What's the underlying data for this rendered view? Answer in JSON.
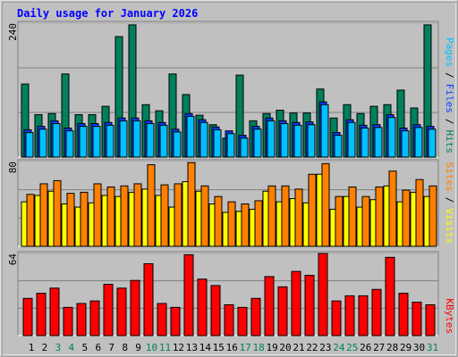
{
  "chart_data": {
    "type": "bar",
    "title": "Daily usage for January 2026",
    "categories": [
      "1",
      "2",
      "3",
      "4",
      "5",
      "6",
      "7",
      "8",
      "9",
      "10",
      "11",
      "12",
      "13",
      "14",
      "15",
      "16",
      "17",
      "18",
      "19",
      "20",
      "21",
      "22",
      "23",
      "24",
      "25",
      "26",
      "27",
      "28",
      "29",
      "30",
      "31"
    ],
    "category_colors": [
      "#000000",
      "#000000",
      "#00805c",
      "#00805c",
      "#000000",
      "#000000",
      "#000000",
      "#000000",
      "#000000",
      "#00805c",
      "#00805c",
      "#000000",
      "#000000",
      "#000000",
      "#000000",
      "#000000",
      "#00805c",
      "#00805c",
      "#000000",
      "#000000",
      "#000000",
      "#000000",
      "#000000",
      "#00805c",
      "#00805c",
      "#000000",
      "#000000",
      "#000000",
      "#000000",
      "#000000",
      "#00805c"
    ],
    "panels": [
      {
        "ylim": [
          0,
          240
        ],
        "yticks": [
          240
        ],
        "gridlines": [
          80,
          160
        ],
        "legend": [
          "Pages",
          "/",
          "Files",
          "/",
          "Hits"
        ],
        "legend_colors": [
          "#00c0ff",
          "#000000",
          "#0040ff",
          "#000000",
          "#00805c"
        ],
        "series": [
          {
            "name": "Hits",
            "color": "#00805c",
            "values": [
              131,
              76,
              78,
              149,
              76,
              76,
              91,
              216,
              237,
              94,
              83,
              149,
              112,
              75,
              58,
              34,
              147,
              65,
              78,
              84,
              79,
              79,
              122,
              70,
              94,
              78,
              91,
              94,
              120,
              88,
              237
            ]
          },
          {
            "name": "Files",
            "color": "#0040ff",
            "values": [
              49,
              55,
              65,
              52,
              60,
              60,
              62,
              70,
              70,
              65,
              62,
              50,
              78,
              67,
              54,
              47,
              39,
              55,
              70,
              65,
              62,
              63,
              99,
              44,
              67,
              57,
              58,
              76,
              52,
              58,
              55
            ]
          },
          {
            "name": "Pages",
            "color": "#00c0ff",
            "values": [
              44,
              50,
              60,
              47,
              55,
              55,
              57,
              65,
              65,
              60,
              57,
              45,
              73,
              62,
              49,
              42,
              34,
              50,
              65,
              60,
              57,
              58,
              94,
              39,
              62,
              52,
              53,
              71,
              47,
              53,
              50
            ]
          }
        ]
      },
      {
        "ylim": [
          0,
          80
        ],
        "yticks": [
          80
        ],
        "gridlines": [
          26.67,
          53.33
        ],
        "legend": [
          "Sites",
          "/",
          "Visits"
        ],
        "legend_colors": [
          "#ff8000",
          "#000000",
          "#ffff00"
        ],
        "series": [
          {
            "name": "Visits",
            "color": "#ffff00",
            "values": [
              42,
              48,
              52,
              40,
              37,
              41,
              48,
              47,
              51,
              54,
              48,
              37,
              61,
              52,
              40,
              32,
              33,
              35,
              52,
              42,
              45,
              41,
              68,
              35,
              47,
              37,
              44,
              57,
              42,
              51,
              47
            ]
          },
          {
            "name": "Sites",
            "color": "#ff8000",
            "values": [
              49,
              59,
              62,
              50,
              51,
              59,
              56,
              57,
              59,
              77,
              58,
              59,
              79,
              57,
              47,
              42,
              40,
              43,
              57,
              57,
              54,
              68,
              78,
              47,
              56,
              47,
              56,
              71,
              53,
              63,
              57
            ]
          }
        ]
      },
      {
        "ylim": [
          0,
          64
        ],
        "yticks": [
          64
        ],
        "gridlines": [
          21.33,
          42.67
        ],
        "legend": [
          "KBytes"
        ],
        "legend_colors": [
          "#ff0000"
        ],
        "series": [
          {
            "name": "KBytes",
            "color": "#ff0000",
            "values": [
              29,
              33,
              37,
              22,
              25,
              27,
              40,
              37,
              43,
              56,
              25,
              22,
              63,
              44,
              39,
              24,
              22,
              29,
              46,
              38,
              50,
              47,
              64,
              27,
              31,
              31,
              36,
              61,
              33,
              26,
              24
            ]
          }
        ]
      }
    ]
  }
}
